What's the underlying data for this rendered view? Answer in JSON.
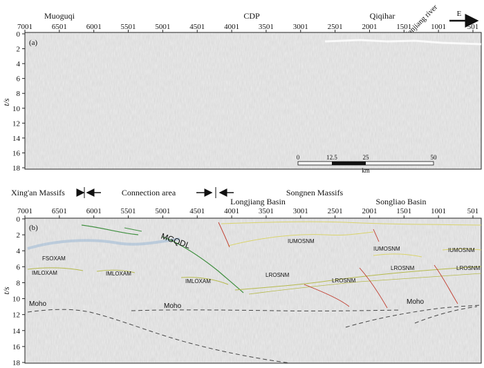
{
  "figure": {
    "panel_a": {
      "label": "(a)",
      "x_ticks": [
        "7001",
        "6501",
        "6001",
        "5501",
        "5001",
        "4501",
        "4001",
        "3501",
        "3001",
        "2501",
        "2001",
        "1501",
        "1001",
        "501"
      ],
      "y_ticks": [
        "0",
        "2",
        "4",
        "6",
        "8",
        "10",
        "12",
        "14",
        "16",
        "18"
      ],
      "y_axis_label": "t/s",
      "top_labels": {
        "left": "Muoguqi",
        "center": "CDP",
        "right": "Qiqihar"
      },
      "river_label": "Nenjiang river",
      "direction_label": "E",
      "scale_bar": {
        "ticks": [
          "0",
          "12.5",
          "25",
          "50"
        ],
        "unit": "km"
      }
    },
    "middle": {
      "xingan": "Xing'an Massifs",
      "connection": "Connection area",
      "songnen": "Songnen Massifs",
      "longjiang": "Longjiang Basin",
      "songliao": "Songliao Basin"
    },
    "panel_b": {
      "label": "(b)",
      "x_ticks": [
        "7001",
        "6501",
        "6001",
        "5501",
        "5001",
        "4501",
        "4001",
        "3501",
        "3001",
        "2501",
        "2001",
        "1501",
        "1001",
        "501"
      ],
      "y_ticks": [
        "0",
        "2",
        "4",
        "6",
        "8",
        "10",
        "12",
        "14",
        "16",
        "18"
      ],
      "y_axis_label": "t/s",
      "annotations": {
        "mgqdl": "MGQDL",
        "fsoxam": "FSOXAM",
        "imloxam_1": "IMLOXAM",
        "imloxam_2": "IMLOXAM",
        "imloxam_3": "IMLOXAM",
        "iumosnm_1": "IUMOSNM",
        "iumosnm_2": "IUMOSNM",
        "iumosnm_3": "IUMOSNM",
        "lrosnm_1": "LROSNM",
        "lrosnm_2": "LROSNM",
        "lrosnm_3": "LROSNM",
        "lrosnm_4": "LROSNM",
        "moho_1": "Moho",
        "moho_2": "Moho",
        "moho_3": "Moho"
      }
    },
    "colors": {
      "seismic_bg": "#ececec",
      "mgqdl_line": "#3f8f3f",
      "olive_line": "#b5b94a",
      "yellow_line": "#d9d36a",
      "red_fault": "#c0392b",
      "blue_band": "#9ab8d6",
      "moho_line": "#444444"
    }
  }
}
